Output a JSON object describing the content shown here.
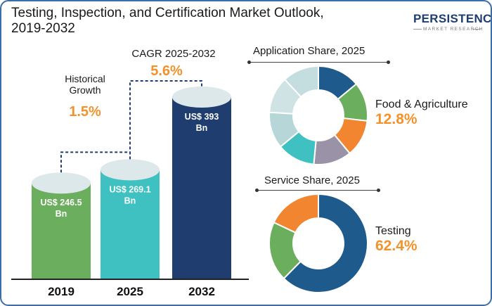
{
  "title_line1": "Testing, Inspection, and Certification Market Outlook,",
  "title_line2": "2019-2032",
  "logo": {
    "main": "PERSISTENCE",
    "sub": "MARKET RESEARCH"
  },
  "cagr_historical": {
    "label_line1": "Historical",
    "label_line2": "Growth",
    "value": "1.5%"
  },
  "cagr_forecast": {
    "label": "CAGR 2025-2032",
    "value": "5.6%"
  },
  "application_share": {
    "title": "Application Share, 2025",
    "highlight_label": "Food & Agriculture",
    "highlight_value": "12.8%"
  },
  "service_share": {
    "title": "Service Share, 2025",
    "highlight_label": "Testing",
    "highlight_value": "62.4%"
  },
  "colors": {
    "bar_2019": "#6aae5e",
    "bar_2025": "#3ec1c0",
    "bar_2032": "#1f3e6f",
    "accent": "#f2922b",
    "cap": "#dde8ea"
  },
  "chart_data": [
    {
      "type": "bar",
      "categories": [
        "2019",
        "2025",
        "2032"
      ],
      "values": [
        246.5,
        269.1,
        393
      ],
      "data_labels": [
        "US$ 246.5 Bn",
        "US$ 269.1 Bn",
        "US$ 393 Bn"
      ],
      "unit": "US$ Bn"
    },
    {
      "type": "pie",
      "title": "Application Share, 2025",
      "segments": [
        {
          "name": "",
          "value": 14.0,
          "color": "#1f5a8c"
        },
        {
          "name": "Food & Agriculture",
          "value": 12.8,
          "color": "#6aae5e"
        },
        {
          "name": "",
          "value": 12.2,
          "color": "#f28530"
        },
        {
          "name": "",
          "value": 12.5,
          "color": "#9a93a8"
        },
        {
          "name": "",
          "value": 12.5,
          "color": "#3ec1c0"
        },
        {
          "name": "",
          "value": 12.0,
          "color": "#b6d6d8"
        },
        {
          "name": "",
          "value": 12.0,
          "color": "#cfe2e4"
        },
        {
          "name": "",
          "value": 12.0,
          "color": "#c4dedf"
        }
      ]
    },
    {
      "type": "pie",
      "title": "Service Share, 2025",
      "segments": [
        {
          "name": "Testing",
          "value": 62.4,
          "color": "#1f5a8c"
        },
        {
          "name": "",
          "value": 19.6,
          "color": "#6aae5e"
        },
        {
          "name": "",
          "value": 18.0,
          "color": "#f28530"
        }
      ]
    }
  ]
}
